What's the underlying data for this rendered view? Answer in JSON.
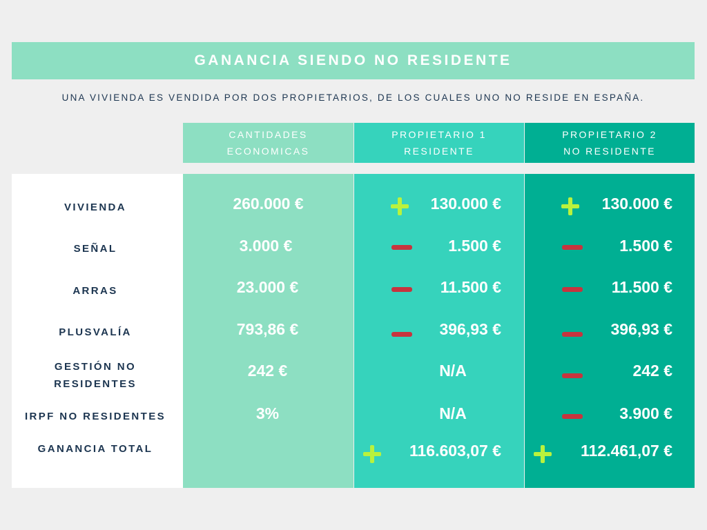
{
  "title": "GANANCIA SIENDO NO RESIDENTE",
  "subtitle": "UNA VIVIENDA ES VENDIDA POR DOS PROPIETARIOS, DE LOS CUALES UNO NO RESIDE EN ESPAÑA.",
  "columns": [
    {
      "line1": "CANTIDADES",
      "line2": "ECONOMICAS"
    },
    {
      "line1": "PROPIETARIO 1",
      "line2": "RESIDENTE"
    },
    {
      "line1": "PROPIETARIO 2",
      "line2": "NO RESIDENTE"
    }
  ],
  "rows": [
    {
      "label1": "VIVIENDA",
      "label2": "",
      "amount": "260.000 €",
      "p1": {
        "sign": "plus",
        "value": "130.000 €"
      },
      "p2": {
        "sign": "plus",
        "value": "130.000 €"
      }
    },
    {
      "label1": "SEÑAL",
      "label2": "",
      "amount": "3.000 €",
      "p1": {
        "sign": "minus",
        "value": "1.500 €"
      },
      "p2": {
        "sign": "minus",
        "value": "1.500 €"
      }
    },
    {
      "label1": "ARRAS",
      "label2": "",
      "amount": "23.000 €",
      "p1": {
        "sign": "minus",
        "value": "11.500 €"
      },
      "p2": {
        "sign": "minus",
        "value": "11.500 €"
      }
    },
    {
      "label1": "PLUSVALÍA",
      "label2": "",
      "amount": "793,86 €",
      "p1": {
        "sign": "minus",
        "value": "396,93 €"
      },
      "p2": {
        "sign": "minus",
        "value": "396,93 €"
      }
    },
    {
      "label1": "GESTIÓN NO",
      "label2": "RESIDENTES",
      "amount": "242 €",
      "p1": {
        "sign": "none",
        "value": "N/A"
      },
      "p2": {
        "sign": "minus",
        "value": "242 €"
      }
    },
    {
      "label1": "IRPF NO RESIDENTES",
      "label2": "",
      "amount": "3%",
      "p1": {
        "sign": "none",
        "value": "N/A"
      },
      "p2": {
        "sign": "minus",
        "value": "3.900 €"
      }
    },
    {
      "label1": "GANANCIA TOTAL",
      "label2": "",
      "amount": "",
      "p1": {
        "sign": "plus",
        "value": "116.603,07 €"
      },
      "p2": {
        "sign": "plus",
        "value": "112.461,07 €"
      }
    }
  ],
  "colors": {
    "banner": "#8ddfc2",
    "col_cantidades": "#8ddfc2",
    "col_propietario1": "#36d3bc",
    "col_propietario2": "#00af93",
    "plus": "#b9f23d",
    "minus": "#c7343e",
    "label_text": "#1c3550"
  }
}
